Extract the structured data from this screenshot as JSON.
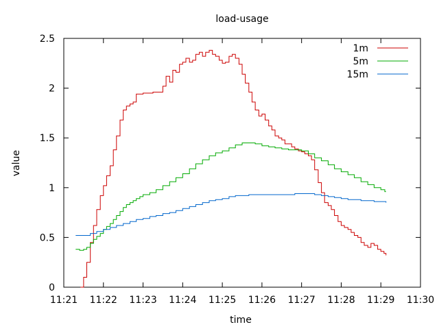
{
  "chart_data": {
    "type": "line",
    "title": "load-usage",
    "xlabel": "time",
    "ylabel": "value",
    "xlim": [
      21.0,
      30.0
    ],
    "ylim": [
      0,
      2.5
    ],
    "x_unit": "minutes past 11:00",
    "x_ticks": [
      21,
      22,
      23,
      24,
      25,
      26,
      27,
      28,
      29,
      30
    ],
    "x_tick_labels": [
      "11:21",
      "11:22",
      "11:23",
      "11:24",
      "11:25",
      "11:26",
      "11:27",
      "11:28",
      "11:29",
      "11:30"
    ],
    "y_ticks": [
      0,
      0.5,
      1,
      1.5,
      2,
      2.5
    ],
    "y_tick_labels": [
      "0",
      "0.5",
      "1",
      "1.5",
      "2",
      "2.5"
    ],
    "grid": false,
    "legend_position": "top-right",
    "step": true,
    "series": [
      {
        "name": "1m",
        "color": "#cc0000",
        "points": [
          [
            21.42,
            0.0
          ],
          [
            21.5,
            0.1
          ],
          [
            21.58,
            0.25
          ],
          [
            21.67,
            0.45
          ],
          [
            21.75,
            0.62
          ],
          [
            21.83,
            0.78
          ],
          [
            21.92,
            0.92
          ],
          [
            22.0,
            1.02
          ],
          [
            22.08,
            1.12
          ],
          [
            22.17,
            1.22
          ],
          [
            22.25,
            1.38
          ],
          [
            22.33,
            1.52
          ],
          [
            22.42,
            1.68
          ],
          [
            22.5,
            1.78
          ],
          [
            22.58,
            1.82
          ],
          [
            22.67,
            1.84
          ],
          [
            22.75,
            1.86
          ],
          [
            22.83,
            1.94
          ],
          [
            23.0,
            1.95
          ],
          [
            23.25,
            1.96
          ],
          [
            23.5,
            2.02
          ],
          [
            23.58,
            2.12
          ],
          [
            23.67,
            2.06
          ],
          [
            23.75,
            2.18
          ],
          [
            23.83,
            2.16
          ],
          [
            23.92,
            2.24
          ],
          [
            24.0,
            2.26
          ],
          [
            24.08,
            2.3
          ],
          [
            24.17,
            2.26
          ],
          [
            24.25,
            2.28
          ],
          [
            24.33,
            2.34
          ],
          [
            24.42,
            2.36
          ],
          [
            24.5,
            2.32
          ],
          [
            24.58,
            2.36
          ],
          [
            24.67,
            2.38
          ],
          [
            24.75,
            2.34
          ],
          [
            24.83,
            2.32
          ],
          [
            24.92,
            2.28
          ],
          [
            25.0,
            2.25
          ],
          [
            25.08,
            2.26
          ],
          [
            25.17,
            2.32
          ],
          [
            25.25,
            2.34
          ],
          [
            25.33,
            2.3
          ],
          [
            25.42,
            2.24
          ],
          [
            25.5,
            2.14
          ],
          [
            25.58,
            2.05
          ],
          [
            25.67,
            1.96
          ],
          [
            25.75,
            1.86
          ],
          [
            25.83,
            1.78
          ],
          [
            25.92,
            1.72
          ],
          [
            26.0,
            1.74
          ],
          [
            26.08,
            1.68
          ],
          [
            26.17,
            1.62
          ],
          [
            26.25,
            1.58
          ],
          [
            26.33,
            1.52
          ],
          [
            26.42,
            1.5
          ],
          [
            26.5,
            1.48
          ],
          [
            26.58,
            1.44
          ],
          [
            26.67,
            1.44
          ],
          [
            26.75,
            1.41
          ],
          [
            26.83,
            1.39
          ],
          [
            26.92,
            1.37
          ],
          [
            27.0,
            1.36
          ],
          [
            27.08,
            1.34
          ],
          [
            27.17,
            1.32
          ],
          [
            27.25,
            1.28
          ],
          [
            27.33,
            1.18
          ],
          [
            27.42,
            1.05
          ],
          [
            27.5,
            0.95
          ],
          [
            27.58,
            0.85
          ],
          [
            27.67,
            0.82
          ],
          [
            27.75,
            0.78
          ],
          [
            27.83,
            0.72
          ],
          [
            27.92,
            0.66
          ],
          [
            28.0,
            0.62
          ],
          [
            28.08,
            0.6
          ],
          [
            28.17,
            0.58
          ],
          [
            28.25,
            0.55
          ],
          [
            28.33,
            0.52
          ],
          [
            28.42,
            0.5
          ],
          [
            28.5,
            0.45
          ],
          [
            28.58,
            0.42
          ],
          [
            28.67,
            0.4
          ],
          [
            28.75,
            0.44
          ],
          [
            28.83,
            0.42
          ],
          [
            28.92,
            0.38
          ],
          [
            29.0,
            0.36
          ],
          [
            29.08,
            0.34
          ],
          [
            29.13,
            0.32
          ]
        ]
      },
      {
        "name": "5m",
        "color": "#00aa00",
        "points": [
          [
            21.3,
            0.38
          ],
          [
            21.4,
            0.37
          ],
          [
            21.5,
            0.38
          ],
          [
            21.58,
            0.4
          ],
          [
            21.67,
            0.44
          ],
          [
            21.75,
            0.48
          ],
          [
            21.83,
            0.51
          ],
          [
            21.92,
            0.54
          ],
          [
            22.0,
            0.58
          ],
          [
            22.08,
            0.61
          ],
          [
            22.17,
            0.64
          ],
          [
            22.25,
            0.68
          ],
          [
            22.33,
            0.72
          ],
          [
            22.42,
            0.76
          ],
          [
            22.5,
            0.8
          ],
          [
            22.58,
            0.83
          ],
          [
            22.67,
            0.85
          ],
          [
            22.75,
            0.87
          ],
          [
            22.83,
            0.89
          ],
          [
            22.92,
            0.91
          ],
          [
            23.0,
            0.93
          ],
          [
            23.17,
            0.95
          ],
          [
            23.33,
            0.98
          ],
          [
            23.5,
            1.02
          ],
          [
            23.67,
            1.06
          ],
          [
            23.83,
            1.1
          ],
          [
            24.0,
            1.14
          ],
          [
            24.17,
            1.19
          ],
          [
            24.33,
            1.24
          ],
          [
            24.5,
            1.28
          ],
          [
            24.67,
            1.32
          ],
          [
            24.83,
            1.35
          ],
          [
            25.0,
            1.37
          ],
          [
            25.17,
            1.4
          ],
          [
            25.33,
            1.43
          ],
          [
            25.5,
            1.45
          ],
          [
            25.67,
            1.45
          ],
          [
            25.83,
            1.44
          ],
          [
            26.0,
            1.42
          ],
          [
            26.17,
            1.41
          ],
          [
            26.33,
            1.4
          ],
          [
            26.5,
            1.39
          ],
          [
            26.67,
            1.38
          ],
          [
            26.83,
            1.38
          ],
          [
            27.0,
            1.37
          ],
          [
            27.17,
            1.34
          ],
          [
            27.33,
            1.3
          ],
          [
            27.5,
            1.27
          ],
          [
            27.67,
            1.23
          ],
          [
            27.83,
            1.19
          ],
          [
            28.0,
            1.16
          ],
          [
            28.17,
            1.13
          ],
          [
            28.33,
            1.1
          ],
          [
            28.5,
            1.06
          ],
          [
            28.67,
            1.03
          ],
          [
            28.83,
            1.0
          ],
          [
            29.0,
            0.98
          ],
          [
            29.1,
            0.96
          ],
          [
            29.13,
            0.96
          ]
        ]
      },
      {
        "name": "15m",
        "color": "#0066cc",
        "points": [
          [
            21.3,
            0.52
          ],
          [
            21.5,
            0.52
          ],
          [
            21.67,
            0.54
          ],
          [
            21.83,
            0.56
          ],
          [
            22.0,
            0.58
          ],
          [
            22.17,
            0.6
          ],
          [
            22.33,
            0.62
          ],
          [
            22.5,
            0.64
          ],
          [
            22.67,
            0.66
          ],
          [
            22.83,
            0.68
          ],
          [
            23.0,
            0.69
          ],
          [
            23.17,
            0.71
          ],
          [
            23.33,
            0.72
          ],
          [
            23.5,
            0.74
          ],
          [
            23.67,
            0.75
          ],
          [
            23.83,
            0.77
          ],
          [
            24.0,
            0.79
          ],
          [
            24.17,
            0.81
          ],
          [
            24.33,
            0.83
          ],
          [
            24.5,
            0.85
          ],
          [
            24.67,
            0.87
          ],
          [
            24.83,
            0.88
          ],
          [
            25.0,
            0.89
          ],
          [
            25.17,
            0.91
          ],
          [
            25.33,
            0.92
          ],
          [
            25.5,
            0.92
          ],
          [
            25.67,
            0.93
          ],
          [
            26.0,
            0.93
          ],
          [
            26.5,
            0.93
          ],
          [
            26.83,
            0.94
          ],
          [
            27.17,
            0.94
          ],
          [
            27.33,
            0.93
          ],
          [
            27.5,
            0.92
          ],
          [
            27.67,
            0.91
          ],
          [
            27.83,
            0.9
          ],
          [
            28.0,
            0.89
          ],
          [
            28.17,
            0.88
          ],
          [
            28.33,
            0.88
          ],
          [
            28.5,
            0.87
          ],
          [
            28.67,
            0.87
          ],
          [
            28.83,
            0.86
          ],
          [
            29.0,
            0.86
          ],
          [
            29.13,
            0.85
          ]
        ]
      }
    ]
  }
}
